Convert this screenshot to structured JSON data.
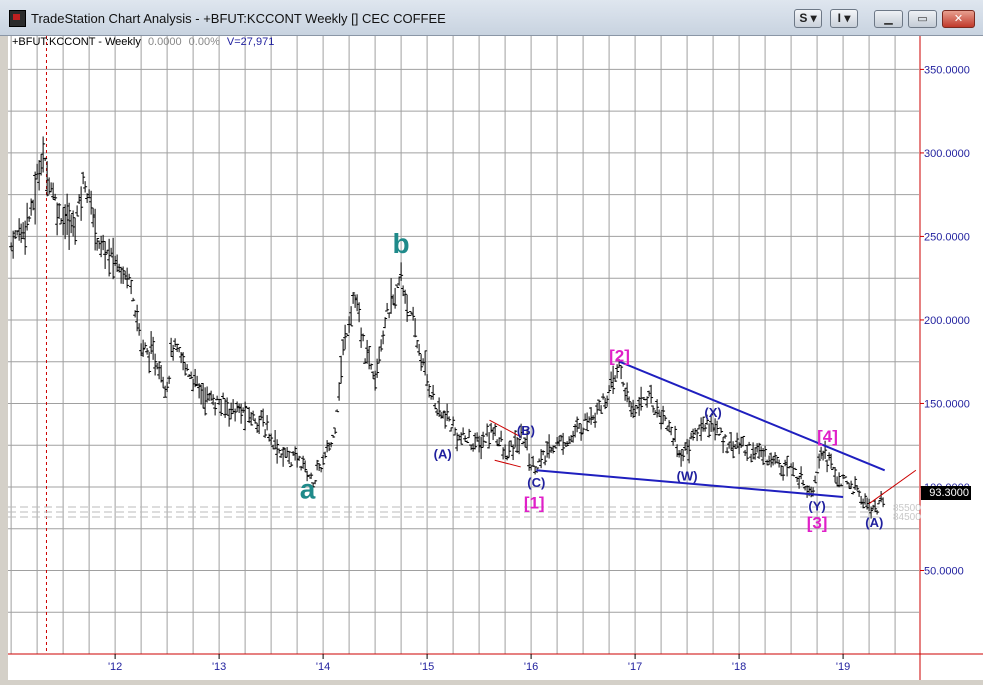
{
  "window": {
    "title": "TradeStation Chart Analysis - +BFUT:KCCONT Weekly [] CEC COFFEE",
    "btn_s": "S",
    "btn_i": "I"
  },
  "chart_header": {
    "symbol": "+BFUT:KCCONT - Weekly",
    "change": "0.0000",
    "pct": "0.00%",
    "volume": "V=27,971"
  },
  "current_price": "93.3000",
  "faint_price_labels": [
    "85500",
    "84500"
  ],
  "colors": {
    "bars": "#000000",
    "wave_major": "#1f8a8a",
    "wave_minor": "#1f1f9e",
    "wave_intermediate": "#e020c8",
    "trendline": "#1f1fbf",
    "grid": "#a0a0a0",
    "frame": "#cc0000"
  },
  "chart_data": {
    "type": "bar",
    "title": "CEC COFFEE",
    "xlabel": "",
    "ylabel": "",
    "ylim": [
      0,
      370
    ],
    "x_tick_labels": [
      "'12",
      "'13",
      "'14",
      "'15",
      "'16",
      "'17",
      "'18",
      "'19"
    ],
    "x_tick_years": [
      2012,
      2013,
      2014,
      2015,
      2016,
      2017,
      2018,
      2019
    ],
    "y_tick_values": [
      50,
      100,
      150,
      200,
      250,
      300,
      350
    ],
    "y_tick_labels": [
      "50.0000",
      "100.0000",
      "150.0000",
      "200.0000",
      "250.0000",
      "300.0000",
      "350.0000"
    ],
    "grid": true,
    "price_path": [
      [
        2011.0,
        245
      ],
      [
        2011.2,
        265
      ],
      [
        2011.3,
        300
      ],
      [
        2011.45,
        265
      ],
      [
        2011.6,
        255
      ],
      [
        2011.7,
        285
      ],
      [
        2011.85,
        245
      ],
      [
        2012.0,
        235
      ],
      [
        2012.15,
        225
      ],
      [
        2012.25,
        185
      ],
      [
        2012.4,
        175
      ],
      [
        2012.5,
        160
      ],
      [
        2012.55,
        185
      ],
      [
        2012.75,
        165
      ],
      [
        2012.85,
        155
      ],
      [
        2013.0,
        150
      ],
      [
        2013.2,
        145
      ],
      [
        2013.4,
        140
      ],
      [
        2013.6,
        120
      ],
      [
        2013.8,
        115
      ],
      [
        2013.9,
        103
      ],
      [
        2014.0,
        115
      ],
      [
        2014.1,
        130
      ],
      [
        2014.2,
        185
      ],
      [
        2014.3,
        215
      ],
      [
        2014.4,
        180
      ],
      [
        2014.5,
        170
      ],
      [
        2014.6,
        200
      ],
      [
        2014.75,
        225
      ],
      [
        2014.85,
        200
      ],
      [
        2014.95,
        175
      ],
      [
        2015.1,
        145
      ],
      [
        2015.2,
        140
      ],
      [
        2015.3,
        130
      ],
      [
        2015.5,
        125
      ],
      [
        2015.65,
        135
      ],
      [
        2015.75,
        118
      ],
      [
        2015.85,
        125
      ],
      [
        2015.95,
        130
      ],
      [
        2016.0,
        112
      ],
      [
        2016.1,
        115
      ],
      [
        2016.2,
        125
      ],
      [
        2016.4,
        130
      ],
      [
        2016.6,
        145
      ],
      [
        2016.75,
        155
      ],
      [
        2016.85,
        173
      ],
      [
        2016.95,
        145
      ],
      [
        2017.1,
        155
      ],
      [
        2017.3,
        140
      ],
      [
        2017.45,
        118
      ],
      [
        2017.55,
        130
      ],
      [
        2017.7,
        140
      ],
      [
        2017.85,
        128
      ],
      [
        2018.0,
        125
      ],
      [
        2018.2,
        120
      ],
      [
        2018.4,
        115
      ],
      [
        2018.55,
        108
      ],
      [
        2018.7,
        98
      ],
      [
        2018.8,
        125
      ],
      [
        2018.9,
        110
      ],
      [
        2019.0,
        102
      ],
      [
        2019.1,
        100
      ],
      [
        2019.2,
        92
      ],
      [
        2019.3,
        86
      ],
      [
        2019.4,
        93
      ]
    ],
    "wave_labels": [
      {
        "text": "a",
        "x": 2013.85,
        "y": 93,
        "style": "major"
      },
      {
        "text": "b",
        "x": 2014.75,
        "y": 240,
        "style": "major"
      },
      {
        "text": "(A)",
        "x": 2015.15,
        "y": 117,
        "style": "minor"
      },
      {
        "text": "(B)",
        "x": 2015.95,
        "y": 131,
        "style": "minor"
      },
      {
        "text": "(C)",
        "x": 2016.05,
        "y": 100,
        "style": "minor"
      },
      {
        "text": "[1]",
        "x": 2016.03,
        "y": 87,
        "style": "intermediate"
      },
      {
        "text": "[2]",
        "x": 2016.85,
        "y": 175,
        "style": "intermediate"
      },
      {
        "text": "(W)",
        "x": 2017.5,
        "y": 104,
        "style": "minor"
      },
      {
        "text": "(X)",
        "x": 2017.75,
        "y": 142,
        "style": "minor"
      },
      {
        "text": "[4]",
        "x": 2018.85,
        "y": 127,
        "style": "intermediate"
      },
      {
        "text": "(Y)",
        "x": 2018.75,
        "y": 86,
        "style": "minor"
      },
      {
        "text": "[3]",
        "x": 2018.75,
        "y": 75,
        "style": "intermediate"
      },
      {
        "text": "(A)",
        "x": 2019.3,
        "y": 76,
        "style": "minor"
      }
    ],
    "trendlines": [
      {
        "x1": 2016.85,
        "y1": 175,
        "x2": 2019.4,
        "y2": 110,
        "color": "trendline"
      },
      {
        "x1": 2016.05,
        "y1": 110,
        "x2": 2019.0,
        "y2": 94,
        "color": "trendline"
      },
      {
        "x1": 2015.6,
        "y1": 140,
        "x2": 2015.9,
        "y2": 130,
        "color": "frame"
      },
      {
        "x1": 2015.65,
        "y1": 116,
        "x2": 2015.9,
        "y2": 112,
        "color": "frame"
      },
      {
        "x1": 2019.25,
        "y1": 90,
        "x2": 2019.7,
        "y2": 110,
        "color": "frame"
      }
    ]
  }
}
